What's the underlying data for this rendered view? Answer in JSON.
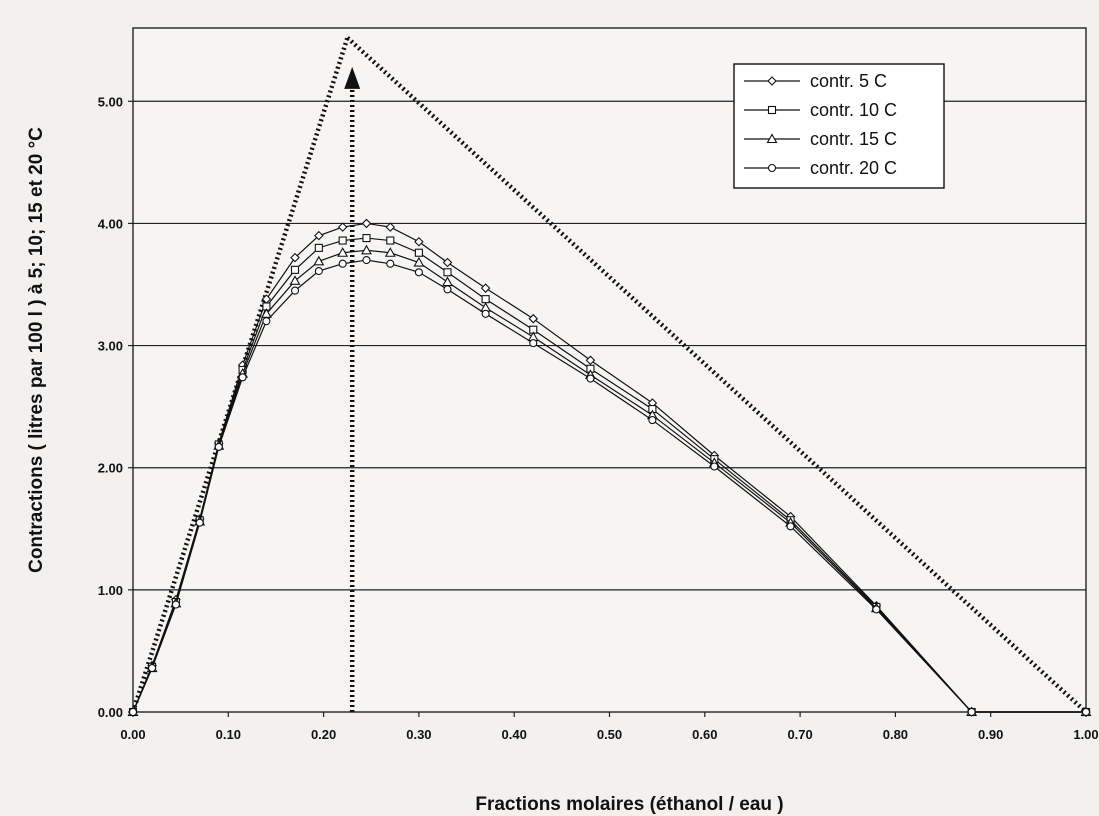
{
  "chart_data": {
    "type": "line",
    "title": "",
    "xlabel": "Fractions molaires (éthanol / eau )",
    "ylabel": "Contractions ( litres par 100 l ) à 5; 10; 15 et 20 °C",
    "xlim": [
      0,
      1
    ],
    "ylim": [
      0,
      5.6
    ],
    "x_ticks": [
      "0.00",
      "0.10",
      "0.20",
      "0.30",
      "0.40",
      "0.50",
      "0.60",
      "0.70",
      "0.80",
      "0.90",
      "1.00"
    ],
    "y_ticks": [
      "0.00",
      "1.00",
      "2.00",
      "3.00",
      "4.00",
      "5.00"
    ],
    "grid": "horizontal",
    "legend_position": "top-right",
    "x": [
      0.0,
      0.02,
      0.045,
      0.07,
      0.09,
      0.115,
      0.14,
      0.17,
      0.195,
      0.22,
      0.245,
      0.27,
      0.3,
      0.33,
      0.37,
      0.42,
      0.48,
      0.545,
      0.61,
      0.69,
      0.78,
      0.88,
      1.0
    ],
    "series": [
      {
        "name": "contr. 5  C",
        "marker": "diamond",
        "values": [
          0.0,
          0.38,
          0.92,
          1.58,
          2.2,
          2.84,
          3.38,
          3.72,
          3.9,
          3.97,
          4.0,
          3.97,
          3.85,
          3.68,
          3.47,
          3.22,
          2.88,
          2.53,
          2.1,
          1.6,
          0.87,
          0.0,
          0.0
        ]
      },
      {
        "name": "contr. 10  C",
        "marker": "square",
        "values": [
          0.0,
          0.37,
          0.9,
          1.57,
          2.19,
          2.8,
          3.32,
          3.62,
          3.8,
          3.86,
          3.88,
          3.86,
          3.76,
          3.6,
          3.38,
          3.13,
          2.81,
          2.48,
          2.07,
          1.57,
          0.86,
          0.0,
          0.0
        ]
      },
      {
        "name": "contr. 15  C",
        "marker": "triangle",
        "values": [
          0.0,
          0.36,
          0.89,
          1.56,
          2.18,
          2.77,
          3.26,
          3.53,
          3.69,
          3.76,
          3.78,
          3.76,
          3.68,
          3.52,
          3.31,
          3.07,
          2.76,
          2.43,
          2.04,
          1.55,
          0.85,
          0.0,
          0.0
        ]
      },
      {
        "name": "contr. 20  C",
        "marker": "circle",
        "values": [
          0.0,
          0.36,
          0.88,
          1.55,
          2.17,
          2.74,
          3.2,
          3.45,
          3.61,
          3.67,
          3.7,
          3.67,
          3.6,
          3.46,
          3.26,
          3.02,
          2.73,
          2.39,
          2.01,
          1.52,
          0.84,
          0.0,
          0.0
        ]
      }
    ],
    "annotations": {
      "dotted_lines": [
        {
          "from": [
            0.0,
            0.0
          ],
          "to": [
            0.225,
            5.52
          ]
        },
        {
          "from": [
            0.225,
            5.52
          ],
          "to": [
            1.0,
            0.0
          ]
        },
        {
          "from": [
            0.23,
            0.0
          ],
          "to": [
            0.23,
            5.1
          ]
        }
      ],
      "arrow_marker": {
        "x": 0.23,
        "y": 5.2
      }
    }
  }
}
